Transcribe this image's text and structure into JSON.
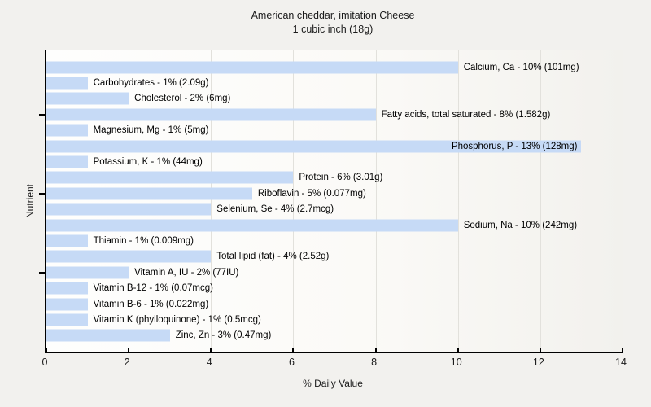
{
  "title": "American cheddar, imitation Cheese",
  "subtitle": "1 cubic inch (18g)",
  "colors": {
    "bar_fill": "#c6daf6",
    "page_background": "#f2f1ee",
    "axis": "#000000",
    "gridline": "#e2e1dc"
  },
  "chart_data": {
    "type": "bar",
    "orientation": "horizontal",
    "title": "American cheddar, imitation Cheese",
    "subtitle": "1 cubic inch (18g)",
    "xlabel": "% Daily Value",
    "ylabel": "Nutrient",
    "xlim": [
      0,
      14
    ],
    "xticks": [
      0,
      2,
      4,
      6,
      8,
      10,
      12,
      14
    ],
    "grid": true,
    "legend": false,
    "bar_fill": "#c6daf6",
    "ytick_rows": [
      3,
      8,
      13
    ],
    "nutrients": [
      {
        "name": "Calcium, Ca",
        "pct": 10,
        "amount": "101mg",
        "label": "Calcium, Ca - 10% (101mg)"
      },
      {
        "name": "Carbohydrates",
        "pct": 1,
        "amount": "2.09g",
        "label": "Carbohydrates - 1% (2.09g)"
      },
      {
        "name": "Cholesterol",
        "pct": 2,
        "amount": "6mg",
        "label": "Cholesterol - 2% (6mg)"
      },
      {
        "name": "Fatty acids, total saturated",
        "pct": 8,
        "amount": "1.582g",
        "label": "Fatty acids, total saturated - 8% (1.582g)"
      },
      {
        "name": "Magnesium, Mg",
        "pct": 1,
        "amount": "5mg",
        "label": "Magnesium, Mg - 1% (5mg)"
      },
      {
        "name": "Phosphorus, P",
        "pct": 13,
        "amount": "128mg",
        "label": "Phosphorus, P - 13% (128mg)",
        "label_inside": true
      },
      {
        "name": "Potassium, K",
        "pct": 1,
        "amount": "44mg",
        "label": "Potassium, K - 1% (44mg)"
      },
      {
        "name": "Protein",
        "pct": 6,
        "amount": "3.01g",
        "label": "Protein - 6% (3.01g)"
      },
      {
        "name": "Riboflavin",
        "pct": 5,
        "amount": "0.077mg",
        "label": "Riboflavin - 5% (0.077mg)"
      },
      {
        "name": "Selenium, Se",
        "pct": 4,
        "amount": "2.7mcg",
        "label": "Selenium, Se - 4% (2.7mcg)"
      },
      {
        "name": "Sodium, Na",
        "pct": 10,
        "amount": "242mg",
        "label": "Sodium, Na - 10% (242mg)"
      },
      {
        "name": "Thiamin",
        "pct": 1,
        "amount": "0.009mg",
        "label": "Thiamin - 1% (0.009mg)"
      },
      {
        "name": "Total lipid (fat)",
        "pct": 4,
        "amount": "2.52g",
        "label": "Total lipid (fat) - 4% (2.52g)"
      },
      {
        "name": "Vitamin A, IU",
        "pct": 2,
        "amount": "77IU",
        "label": "Vitamin A, IU - 2% (77IU)"
      },
      {
        "name": "Vitamin B-12",
        "pct": 1,
        "amount": "0.07mcg",
        "label": "Vitamin B-12 - 1% (0.07mcg)"
      },
      {
        "name": "Vitamin B-6",
        "pct": 1,
        "amount": "0.022mg",
        "label": "Vitamin B-6 - 1% (0.022mg)"
      },
      {
        "name": "Vitamin K (phylloquinone)",
        "pct": 1,
        "amount": "0.5mcg",
        "label": "Vitamin K (phylloquinone) - 1% (0.5mcg)"
      },
      {
        "name": "Zinc, Zn",
        "pct": 3,
        "amount": "0.47mg",
        "label": "Zinc, Zn - 3% (0.47mg)"
      }
    ]
  }
}
